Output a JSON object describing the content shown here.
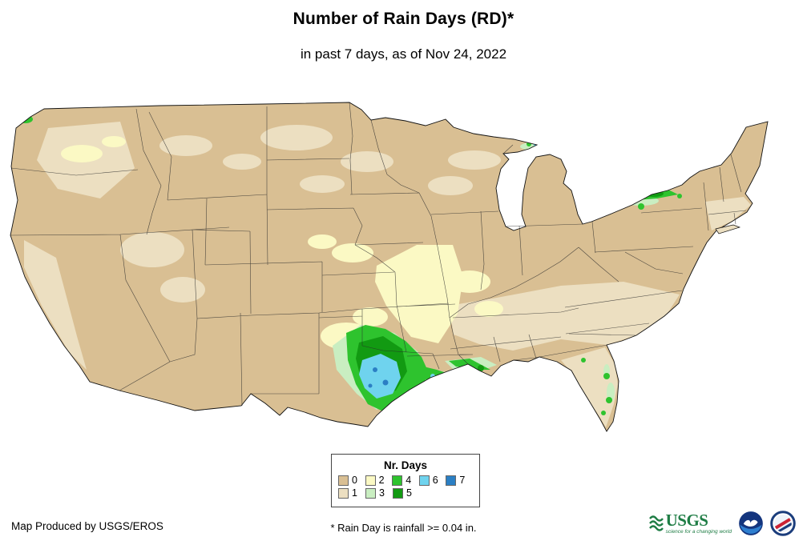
{
  "header": {
    "title": "Number of Rain Days (RD)*",
    "subtitle": "in past 7 days, as of Nov 24, 2022"
  },
  "legend": {
    "title": "Nr. Days",
    "rows": [
      [
        "0",
        "2",
        "4",
        "6",
        "7"
      ],
      [
        "1",
        "3",
        "5"
      ]
    ]
  },
  "palette": {
    "0": "#d9bf93",
    "1": "#ecdfc1",
    "2": "#fbf9c4",
    "3": "#c9eec1",
    "4": "#2ec32e",
    "5": "#129a12",
    "6": "#6fd3ee",
    "7": "#2b7fc4"
  },
  "brand": {
    "usgs_green": "#1f7d45",
    "noaa_navy": "#14357e",
    "noaa_light_blue": "#2e7fd0",
    "nws_navy": "#1b3d7c",
    "nws_red": "#cc2233"
  },
  "footer": {
    "credit": "Map Produced by USGS/EROS",
    "note": "* Rain Day is rainfall >= 0.04 in."
  },
  "logos": {
    "usgs": {
      "text": "USGS",
      "tagline": "science for a changing world"
    }
  }
}
